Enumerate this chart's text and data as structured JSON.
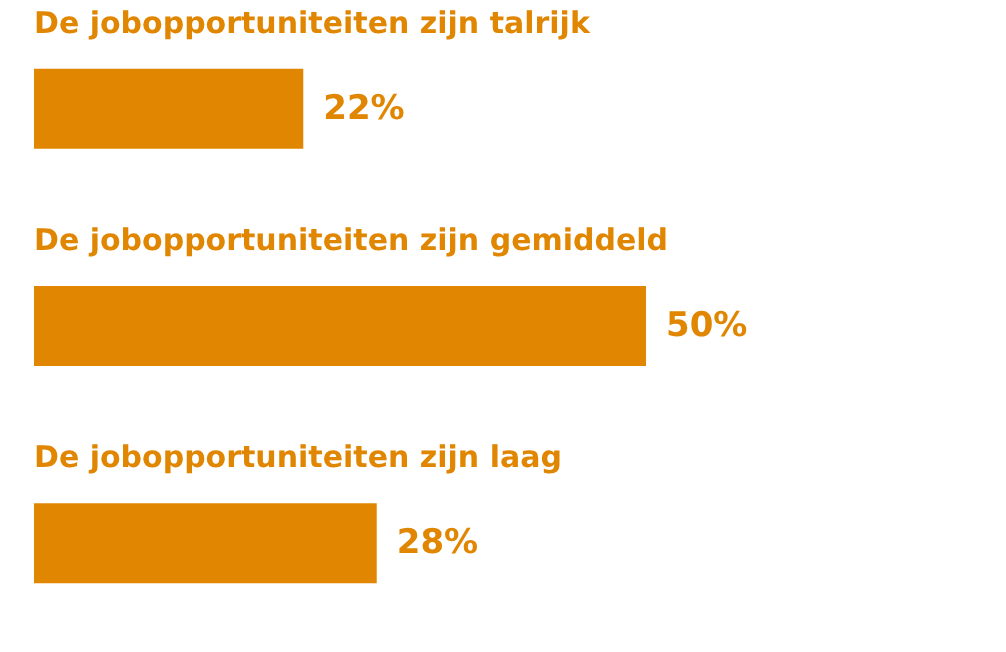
{
  "chart_data": {
    "type": "bar",
    "orientation": "horizontal",
    "categories": [
      "De jobopportuniteiten zijn talrijk",
      "De jobopportuniteiten zijn gemiddeld",
      "De jobopportuniteiten zijn laag"
    ],
    "values": [
      22,
      50,
      28
    ],
    "color": "#e08600",
    "value_labels": [
      "22%",
      "50%",
      "28%"
    ]
  }
}
